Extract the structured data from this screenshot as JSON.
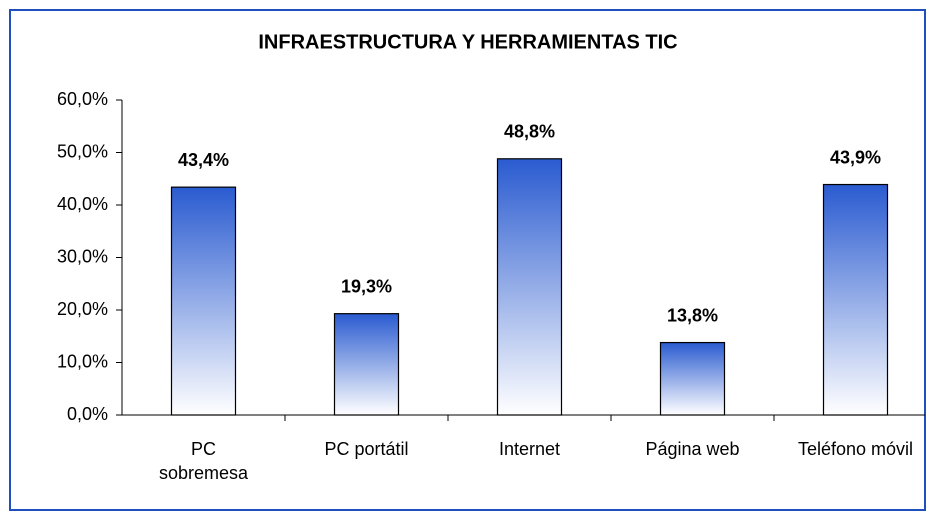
{
  "chart_data": {
    "type": "bar",
    "title": "INFRAESTRUCTURA Y HERRAMIENTAS TIC",
    "categories": [
      "PC sobremesa",
      "PC portátil",
      "Internet",
      "Página web",
      "Teléfono móvil"
    ],
    "values": [
      43.4,
      19.3,
      48.8,
      13.8,
      43.9
    ],
    "value_labels": [
      "43,4%",
      "19,3%",
      "48,8%",
      "13,8%",
      "43,9%"
    ],
    "color": "#2a5bd0",
    "ylim": [
      0,
      60
    ],
    "yticks": [
      {
        "value": 0,
        "label": "0,0%"
      },
      {
        "value": 10,
        "label": "10,0%"
      },
      {
        "value": 20,
        "label": "20,0%"
      },
      {
        "value": 30,
        "label": "30,0%"
      },
      {
        "value": 40,
        "label": "40,0%"
      },
      {
        "value": 50,
        "label": "50,0%"
      },
      {
        "value": 60,
        "label": "60,0%"
      }
    ]
  }
}
